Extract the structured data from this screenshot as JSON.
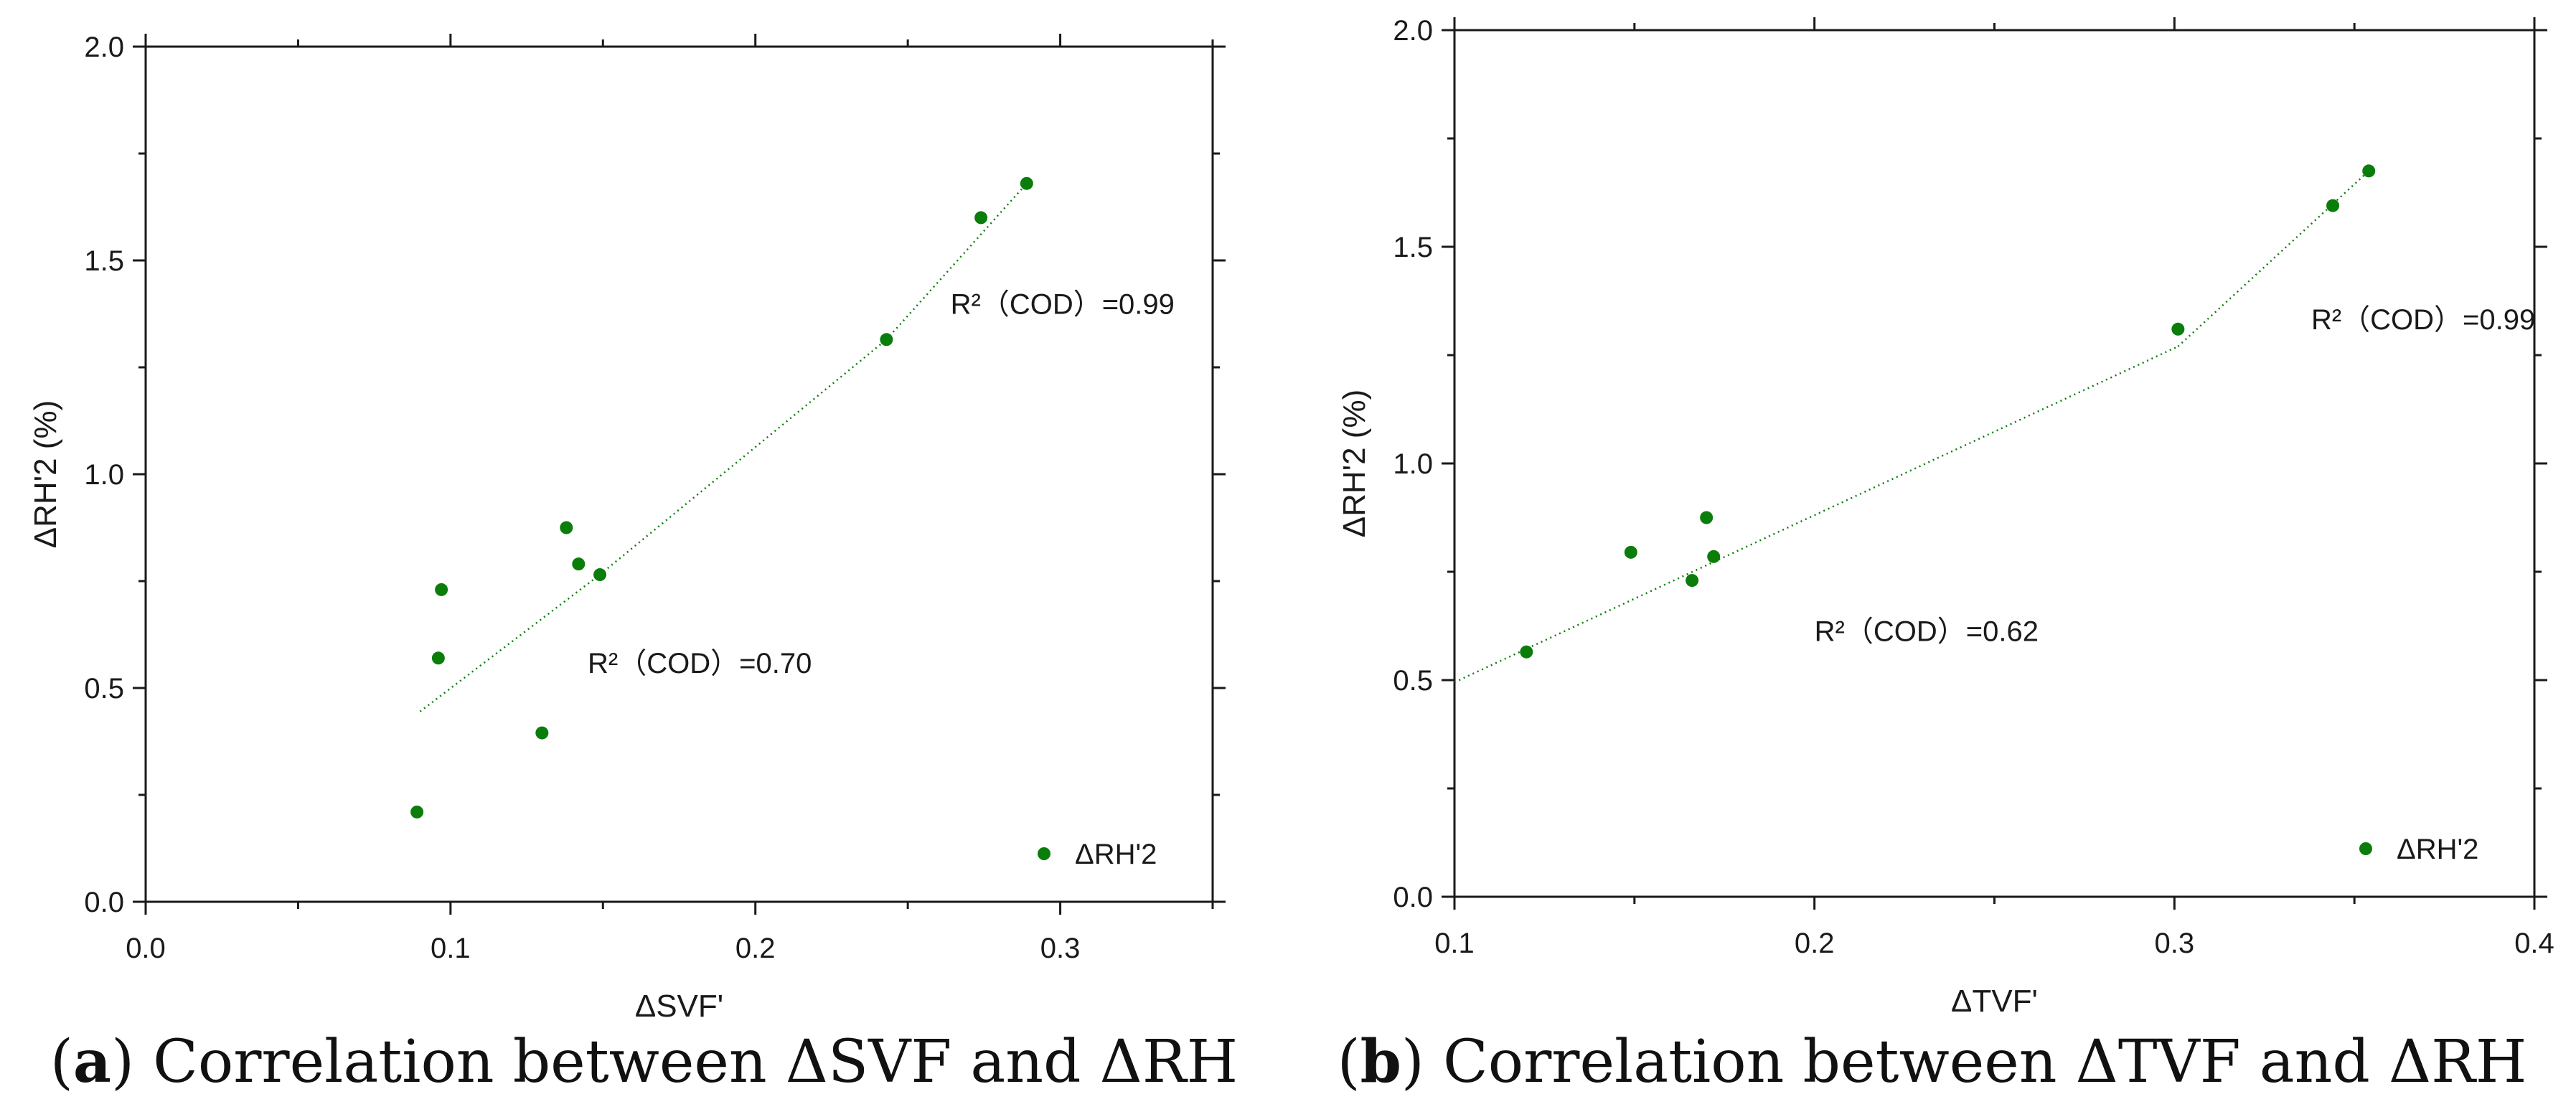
{
  "chart_data": [
    {
      "type": "scatter",
      "id": "a",
      "xlabel": "ΔSVF'",
      "ylabel": "ΔRH'2 (%)",
      "xlim": [
        0.0,
        0.35
      ],
      "ylim": [
        0.0,
        2.0
      ],
      "xticks": [
        0.0,
        0.1,
        0.2,
        0.3
      ],
      "xtick_labels": [
        "0.0",
        "0.1",
        "0.2",
        "0.3"
      ],
      "yticks": [
        0.0,
        0.5,
        1.0,
        1.5,
        2.0
      ],
      "ytick_labels": [
        "0.0",
        "0.5",
        "1.0",
        "1.5",
        "2.0"
      ],
      "series": [
        {
          "name": "ΔRH'2",
          "color": "#0a7d0a",
          "points": [
            {
              "x": 0.089,
              "y": 0.21
            },
            {
              "x": 0.096,
              "y": 0.57
            },
            {
              "x": 0.097,
              "y": 0.73
            },
            {
              "x": 0.13,
              "y": 0.395
            },
            {
              "x": 0.138,
              "y": 0.875
            },
            {
              "x": 0.142,
              "y": 0.79
            },
            {
              "x": 0.149,
              "y": 0.765
            },
            {
              "x": 0.243,
              "y": 1.315
            },
            {
              "x": 0.274,
              "y": 1.6
            },
            {
              "x": 0.289,
              "y": 1.68
            }
          ]
        }
      ],
      "fits": [
        {
          "x": [
            0.09,
            0.149
          ],
          "y": [
            0.445,
            0.765
          ]
        },
        {
          "x": [
            0.149,
            0.243
          ],
          "y": [
            0.765,
            1.315
          ]
        },
        {
          "x": [
            0.243,
            0.289
          ],
          "y": [
            1.315,
            1.68
          ]
        }
      ],
      "annotations": [
        {
          "text": "R²（COD）=0.99",
          "x": 0.264,
          "y": 1.375
        },
        {
          "text": "R²（COD）=0.70",
          "x": 0.145,
          "y": 0.535
        }
      ],
      "legend": {
        "label": "ΔRH'2",
        "position": "bottom-right"
      },
      "caption": {
        "letter": "a",
        "text": ") Correlation between ΔSVF and ΔRH"
      }
    },
    {
      "type": "scatter",
      "id": "b",
      "xlabel": "ΔTVF'",
      "ylabel": "ΔRH'2 (%)",
      "xlim": [
        0.1,
        0.4
      ],
      "ylim": [
        0.0,
        2.0
      ],
      "xticks": [
        0.1,
        0.2,
        0.3,
        0.4
      ],
      "xtick_labels": [
        "0.1",
        "0.2",
        "0.3",
        "0.4"
      ],
      "yticks": [
        0.0,
        0.5,
        1.0,
        1.5,
        2.0
      ],
      "ytick_labels": [
        "0.0",
        "0.5",
        "1.0",
        "1.5",
        "2.0"
      ],
      "series": [
        {
          "name": "ΔRH'2",
          "color": "#0a7d0a",
          "points": [
            {
              "x": 0.12,
              "y": 0.565
            },
            {
              "x": 0.149,
              "y": 0.795
            },
            {
              "x": 0.166,
              "y": 0.73
            },
            {
              "x": 0.17,
              "y": 0.875
            },
            {
              "x": 0.172,
              "y": 0.785
            },
            {
              "x": 0.301,
              "y": 1.31
            },
            {
              "x": 0.344,
              "y": 1.595
            },
            {
              "x": 0.354,
              "y": 1.675
            }
          ]
        }
      ],
      "fits": [
        {
          "x": [
            0.1,
            0.301
          ],
          "y": [
            0.495,
            1.27
          ]
        },
        {
          "x": [
            0.301,
            0.354
          ],
          "y": [
            1.27,
            1.675
          ]
        }
      ],
      "annotations": [
        {
          "text": "R²（COD）=0.99",
          "x": 0.338,
          "y": 1.31
        },
        {
          "text": "R²（COD）=0.62",
          "x": 0.2,
          "y": 0.59
        }
      ],
      "legend": {
        "label": "ΔRH'2",
        "position": "bottom-right"
      },
      "caption": {
        "letter": "b",
        "text": ") Correlation between ΔTVF and ΔRH"
      }
    }
  ]
}
